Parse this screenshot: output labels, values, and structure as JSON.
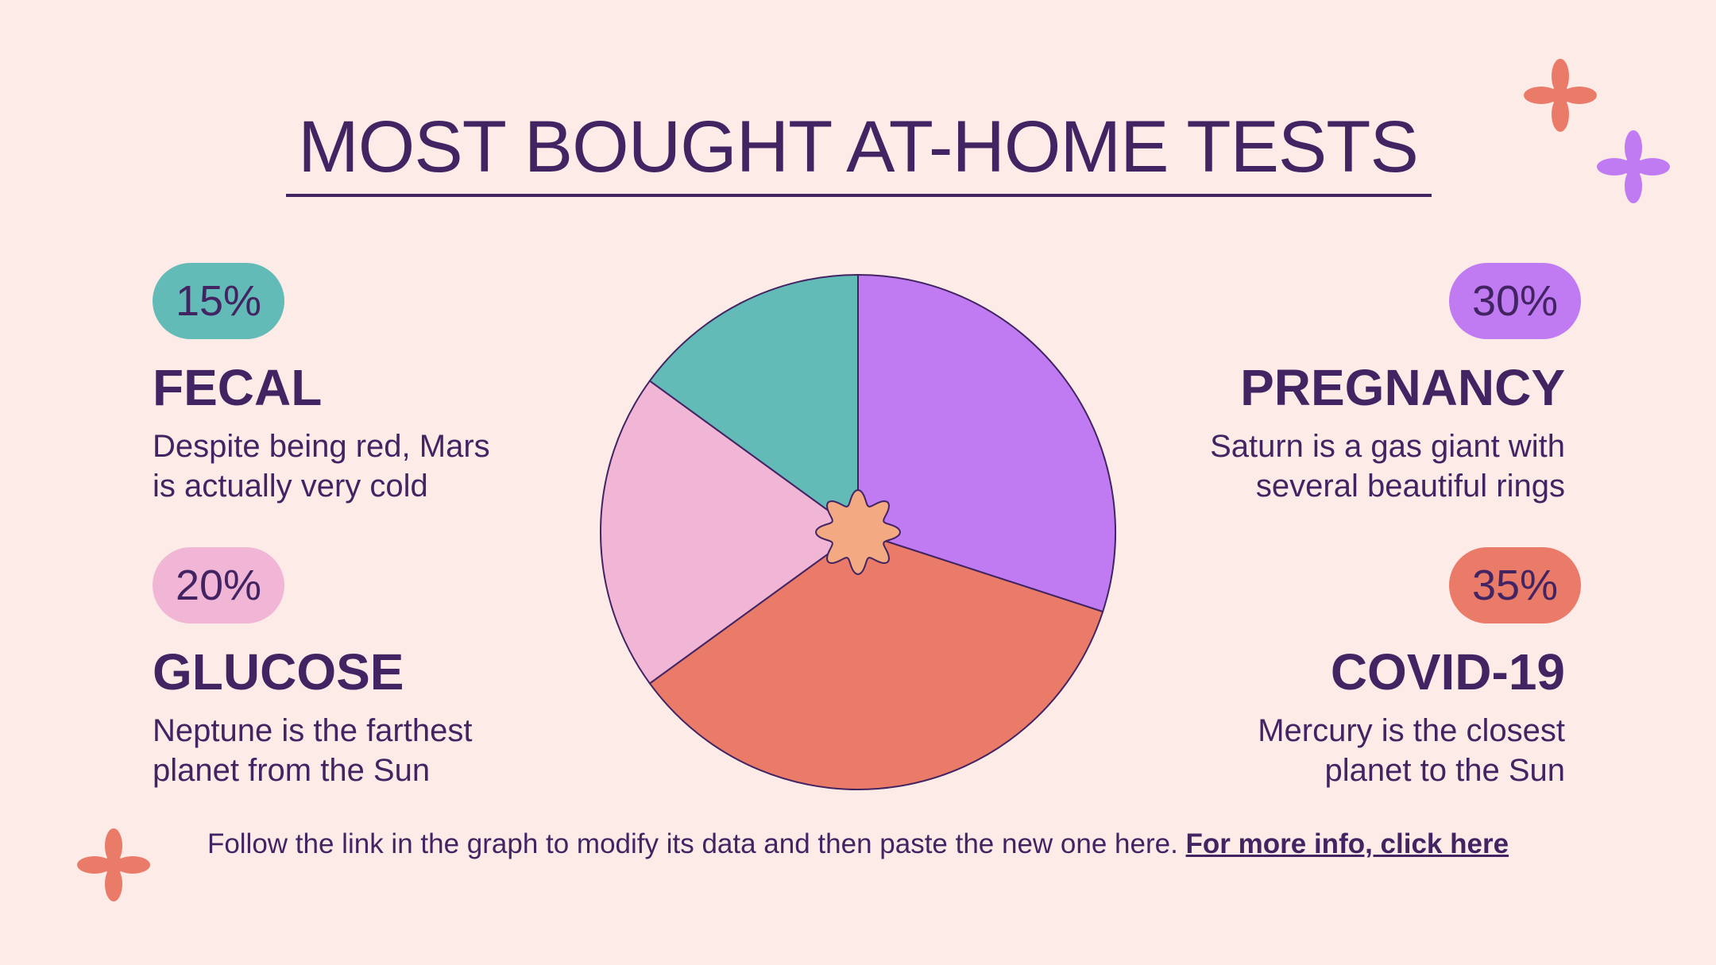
{
  "title": "MOST BOUGHT AT-HOME TESTS",
  "colors": {
    "background": "#fdebe8",
    "text": "#432463",
    "teal": "#63bbb8",
    "purple": "#c07bf2",
    "pink": "#f1b6d6",
    "coral": "#e97b68",
    "flower": "#f3a981"
  },
  "items": {
    "fecal": {
      "percent": "15%",
      "name": "FECAL",
      "description": "Despite being red, Mars is actually very cold"
    },
    "pregnancy": {
      "percent": "30%",
      "name": "PREGNANCY",
      "description": "Saturn is a gas giant with several beautiful rings"
    },
    "glucose": {
      "percent": "20%",
      "name": "GLUCOSE",
      "description": "Neptune is the farthest planet from the Sun"
    },
    "covid": {
      "percent": "35%",
      "name": "COVID-19",
      "description": "Mercury is the closest planet to the Sun"
    }
  },
  "footer": {
    "text": "Follow the link in the graph to modify its data and then paste the new one here.",
    "link": "For more info, click here"
  },
  "chart_data": {
    "type": "pie",
    "categories": [
      "PREGNANCY",
      "COVID-19",
      "GLUCOSE",
      "FECAL"
    ],
    "values": [
      30,
      35,
      20,
      15
    ],
    "colors": [
      "#c07bf2",
      "#e97b68",
      "#f1b6d6",
      "#63bbb8"
    ],
    "start": "12 o'clock",
    "direction": "clockwise"
  }
}
